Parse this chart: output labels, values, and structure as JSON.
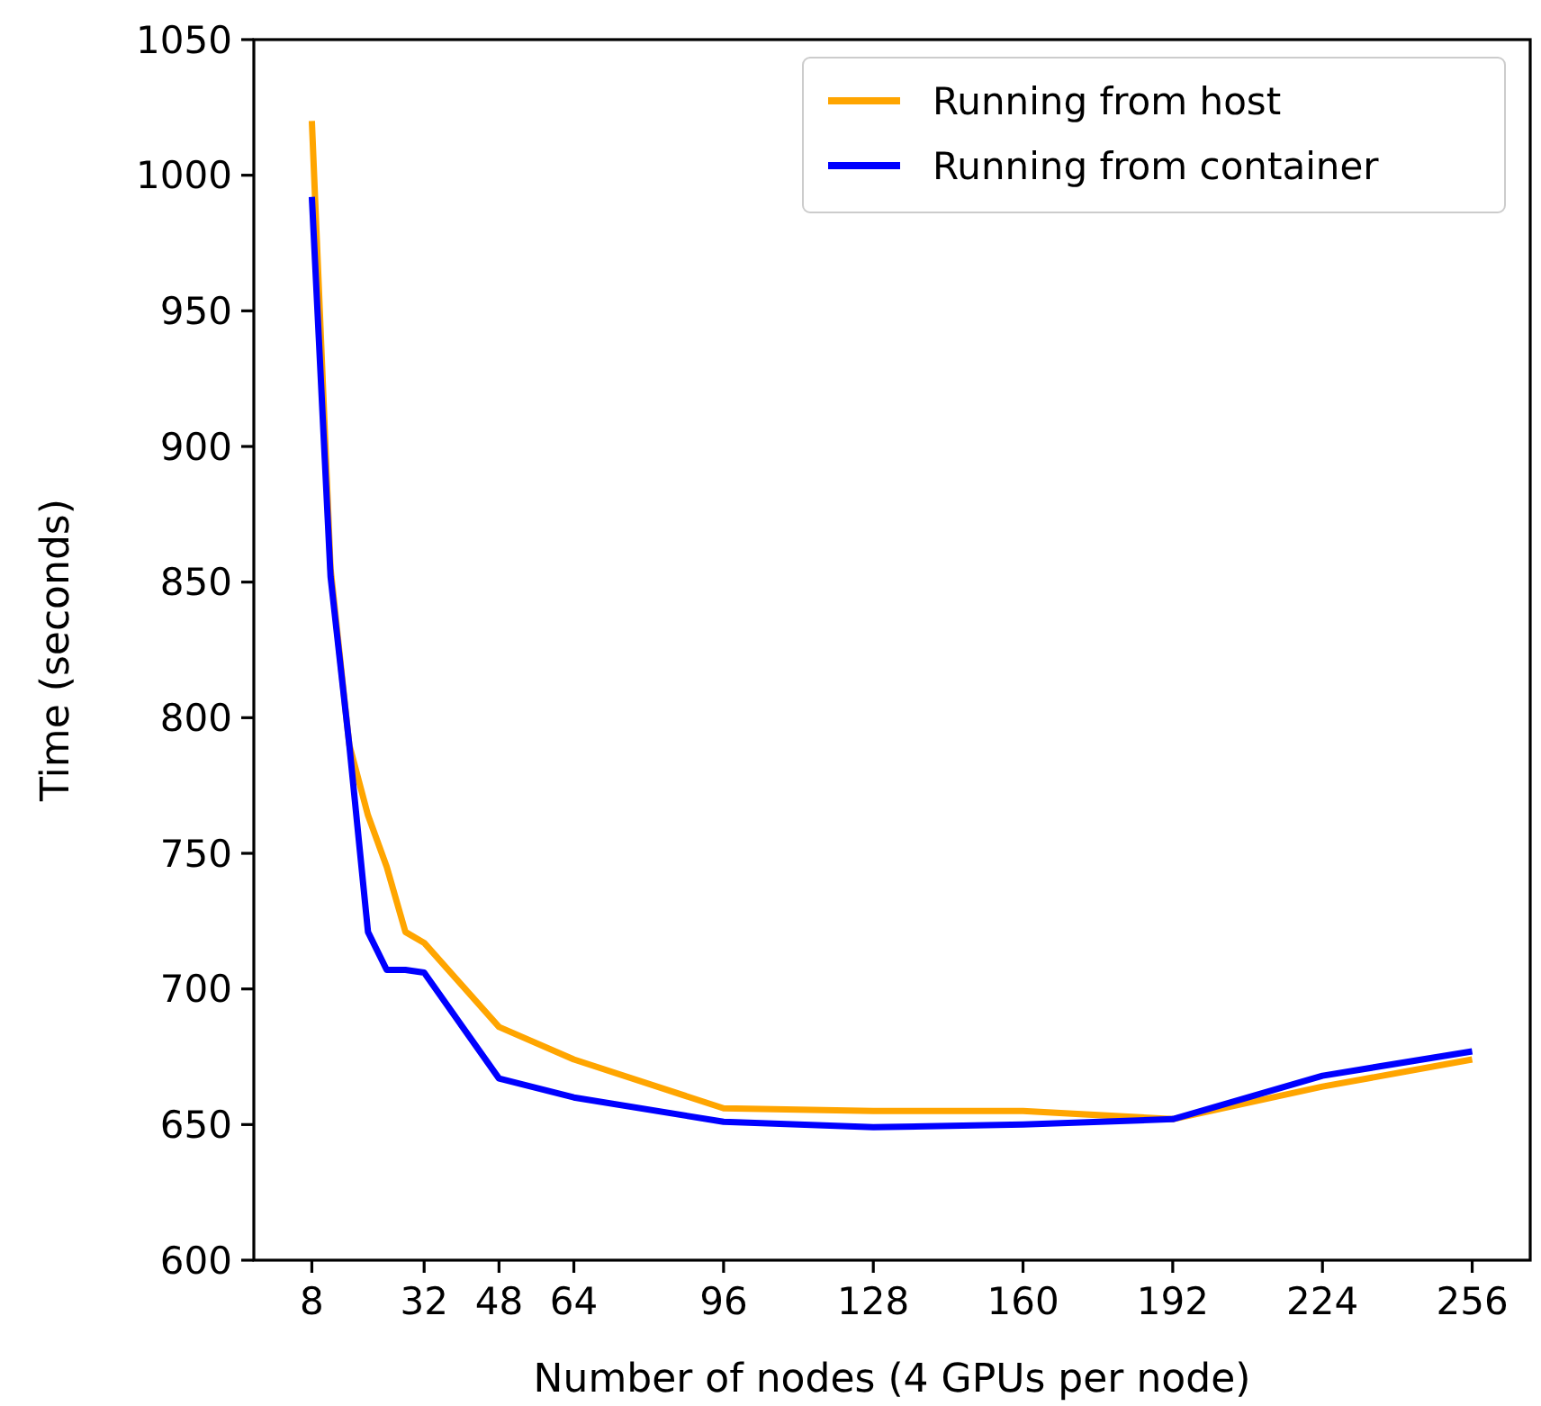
{
  "chart_data": {
    "type": "line",
    "xlabel": "Number of nodes (4 GPUs per node)",
    "ylabel": "Time (seconds)",
    "xlim": [
      -4.4,
      268.4
    ],
    "xticks": [
      8,
      32,
      48,
      64,
      96,
      128,
      160,
      192,
      224,
      256
    ],
    "ylim": [
      600,
      1050
    ],
    "yticks": [
      600,
      650,
      700,
      750,
      800,
      850,
      900,
      950,
      1000,
      1050
    ],
    "legend": "top right",
    "grid": false,
    "series": [
      {
        "name": "Running from host",
        "color": "#ffa500",
        "x": [
          8,
          12,
          16,
          20,
          24,
          28,
          32,
          48,
          64,
          96,
          128,
          160,
          192,
          224,
          256
        ],
        "values": [
          1020,
          855,
          790,
          764,
          745,
          721,
          717,
          686,
          674,
          656,
          655,
          655,
          652,
          664,
          674
        ]
      },
      {
        "name": "Running from container",
        "color": "#0000ff",
        "x": [
          8,
          12,
          16,
          20,
          24,
          28,
          32,
          48,
          64,
          96,
          128,
          160,
          192,
          224,
          256
        ],
        "values": [
          992,
          852,
          790,
          721,
          707,
          707,
          706,
          667,
          660,
          651,
          649,
          650,
          652,
          668,
          677
        ]
      }
    ]
  }
}
